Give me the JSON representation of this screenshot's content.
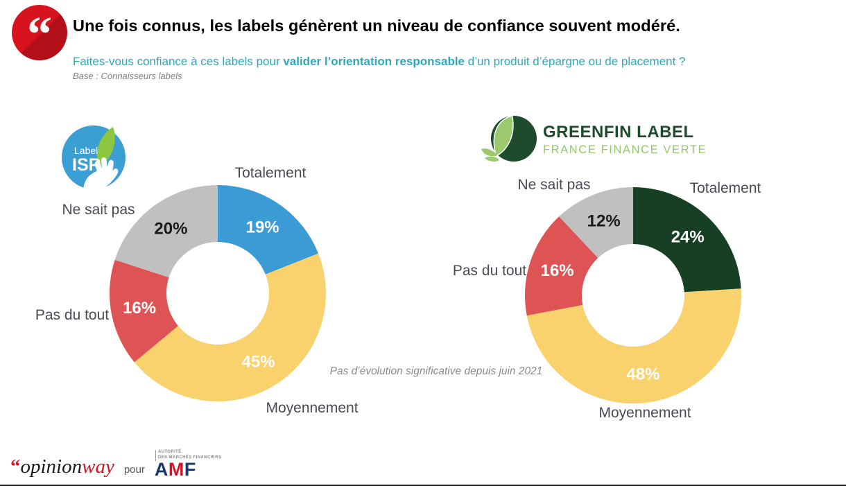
{
  "header": {
    "quote_glyph": "“",
    "title": "Une fois connus, les labels génèrent un niveau de confiance souvent modéré.",
    "question_prefix": "Faites-vous confiance à ces labels pour ",
    "question_bold": "valider l’orientation responsable",
    "question_suffix": " d’un produit d’épargne ou de placement ?",
    "base_note": "Base : Connaisseurs labels"
  },
  "logos": {
    "isr": {
      "line1": "Label",
      "line2": "ISR"
    },
    "greenfin": {
      "line1": "GREENFIN LABEL",
      "line2": "FRANCE FINANCE VERTE"
    }
  },
  "annotation": "Pas d’évolution significative depuis juin 2021",
  "footer": {
    "brand_quote": "“",
    "brand_part1": "opinion",
    "brand_part2": "way",
    "pour": "pour",
    "amf_line1": "AUTORITÉ",
    "amf_line2": "DES MARCHÉS FINANCIERS",
    "amf_a": "A",
    "amf_m": "M",
    "amf_f": "F"
  },
  "colors": {
    "accent_red": "#D6131F",
    "question_teal": "#29A9BC",
    "category_label_grey": "#4A4A55",
    "isr_blue": "#3B9FD4",
    "isr_leaf_green": "#8DC63F",
    "greenfin_dark_green": "#1D4B2C",
    "greenfin_light_green": "#9CC96E",
    "amf_navy": "#1B3A6B",
    "amf_red": "#D6112B"
  },
  "chart_data": [
    {
      "type": "pie",
      "variant": "donut",
      "title": "Label ISR",
      "categories": [
        "Totalement",
        "Moyennement",
        "Pas du tout",
        "Ne sait pas"
      ],
      "values": [
        19,
        45,
        16,
        20
      ],
      "unit": "%",
      "colors": [
        "#3B9BD4",
        "#F9D16D",
        "#DE5454",
        "#C0C0C0"
      ],
      "value_label_colors": [
        "#FFFFFF",
        "#FFFFFF",
        "#FFFFFF",
        "#1A1A1A"
      ],
      "start_angle_deg": 0,
      "direction": "clockwise",
      "legend_position": "around"
    },
    {
      "type": "pie",
      "variant": "donut",
      "title": "Greenfin Label — France Finance Verte",
      "categories": [
        "Totalement",
        "Moyennement",
        "Pas du tout",
        "Ne sait pas"
      ],
      "values": [
        24,
        48,
        16,
        12
      ],
      "unit": "%",
      "colors": [
        "#173F23",
        "#F9D16D",
        "#DE5454",
        "#C0C0C0"
      ],
      "value_label_colors": [
        "#FFFFFF",
        "#FFFFFF",
        "#FFFFFF",
        "#1A1A1A"
      ],
      "start_angle_deg": 0,
      "direction": "clockwise",
      "legend_position": "around"
    }
  ]
}
